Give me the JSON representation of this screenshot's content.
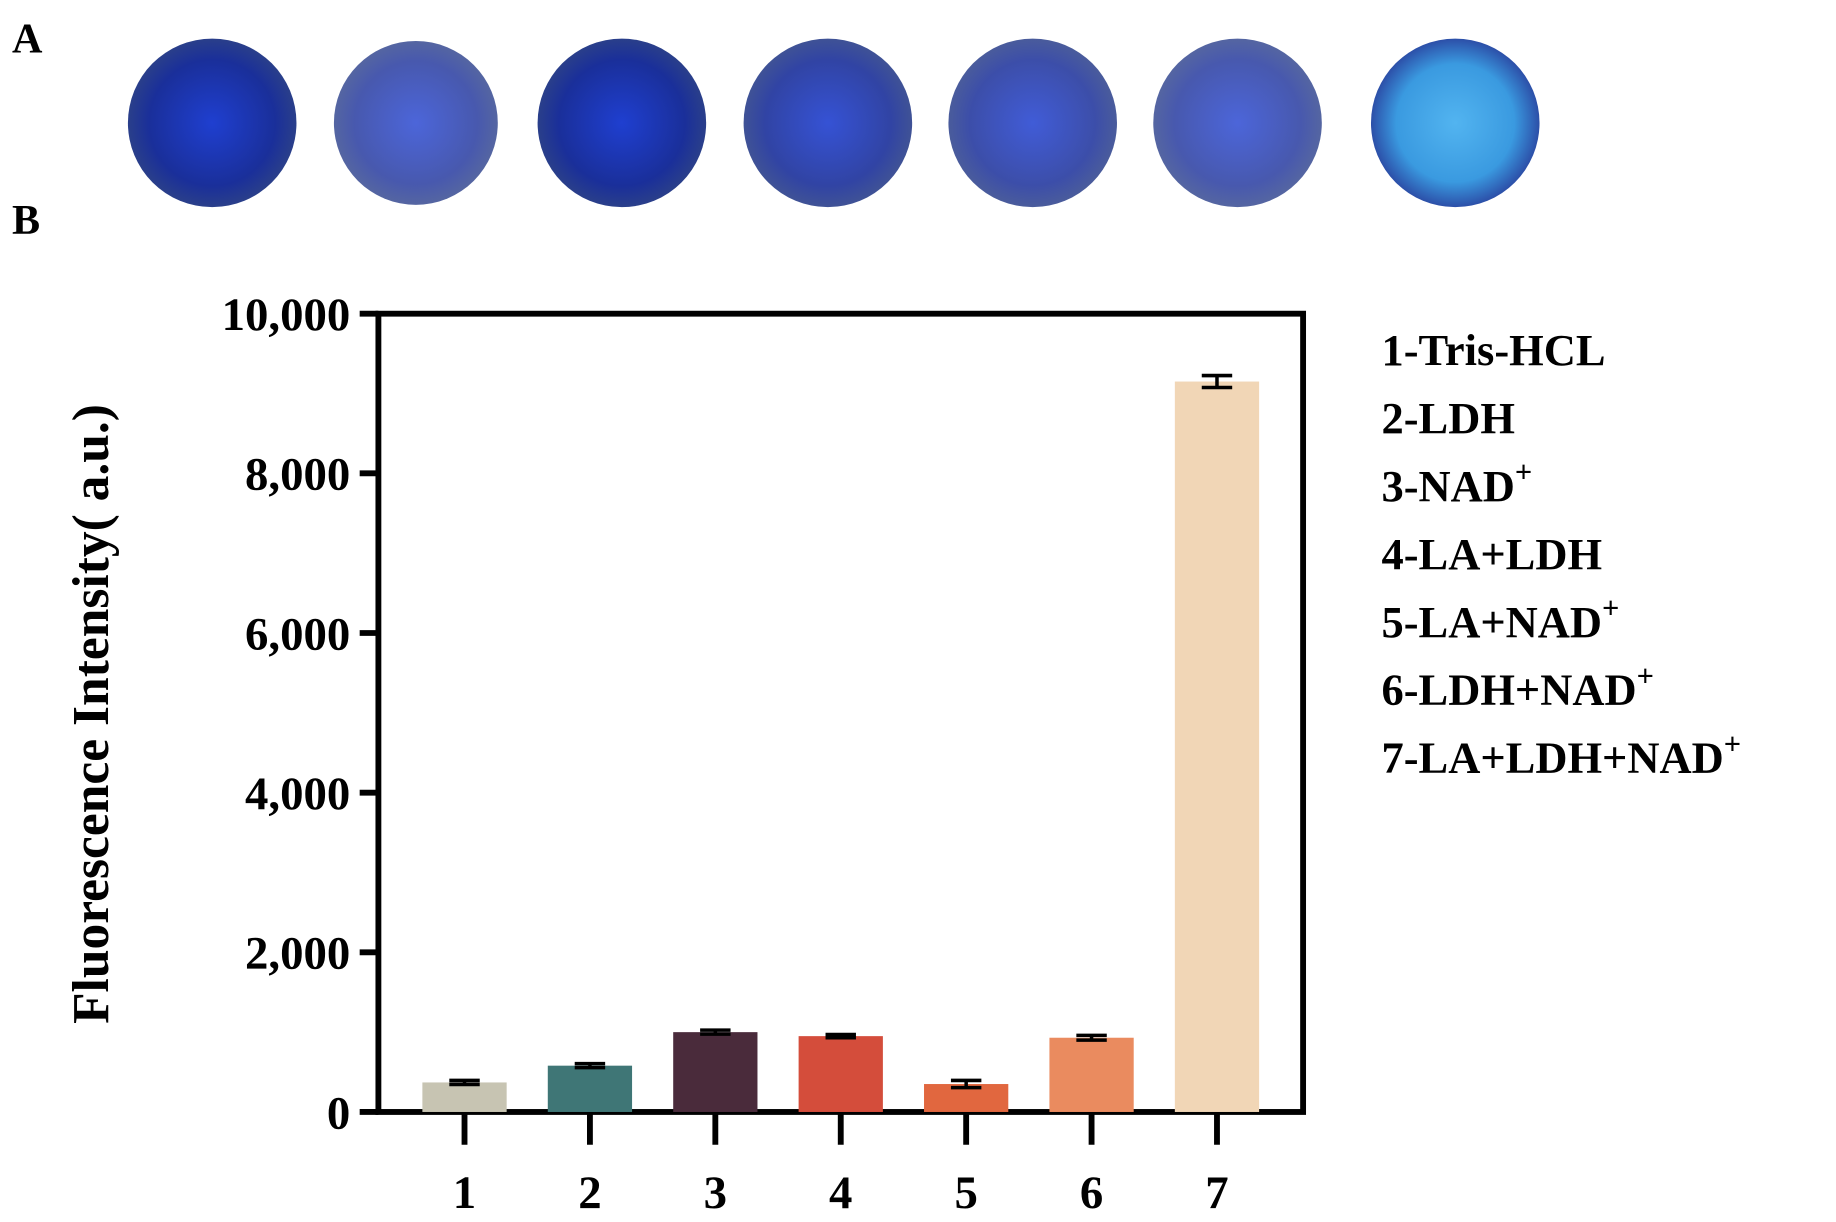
{
  "panel_labels": [
    "A",
    "B"
  ],
  "chart_data": {
    "type": "bar",
    "y_label": "Fluorescence Intensity( a.u.)",
    "categories": [
      "1",
      "2",
      "3",
      "4",
      "5",
      "6",
      "7"
    ],
    "values": [
      370,
      580,
      1000,
      950,
      350,
      930,
      9150
    ],
    "errors": [
      25,
      25,
      25,
      20,
      45,
      30,
      75
    ],
    "colors": [
      "#c7c4b2",
      "#3f7676",
      "#4a2b3b",
      "#d44d3b",
      "#e1673f",
      "#ea8b5f",
      "#f1d6b6"
    ],
    "ylim": [
      0,
      10000
    ],
    "yticks": [
      0,
      {
        "value": 2000,
        "label": "2,000"
      },
      {
        "value": 4000,
        "label": "4,000"
      },
      {
        "value": 6000,
        "label": "6,000"
      },
      {
        "value": 8000,
        "label": "8,000"
      },
      {
        "value": 10000,
        "label": "10,000"
      }
    ],
    "legend": [
      {
        "text": "1-Tris-HCL"
      },
      {
        "text": "2-LDH"
      },
      {
        "text": "3-NAD",
        "sup": "+"
      },
      {
        "text": "4-LA+LDH"
      },
      {
        "text": "5-LA+NAD",
        "sup": "+"
      },
      {
        "text": "6-LDH+NAD",
        "sup": "+"
      },
      {
        "text": "7-LA+LDH+NAD",
        "sup": "+"
      }
    ]
  }
}
